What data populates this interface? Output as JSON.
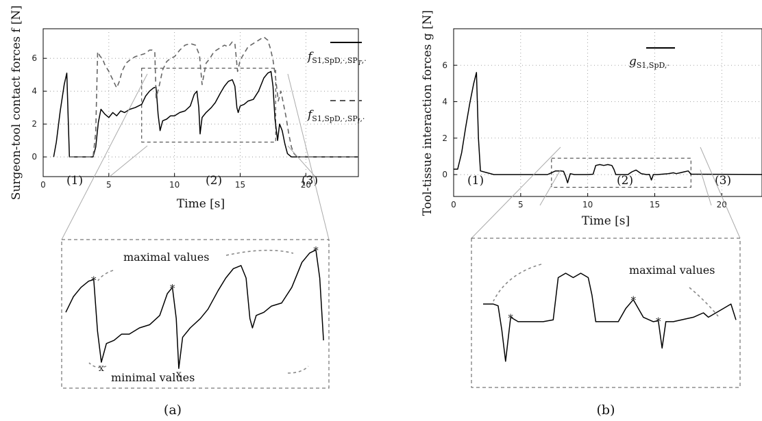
{
  "chart_data": [
    {
      "type": "line",
      "panel": "(a)",
      "ylabel": "Surgeon-tool contact forces f [N]",
      "xlabel": "Time [s]",
      "xlim": [
        0,
        24
      ],
      "ylim": [
        -1.2,
        7.8
      ],
      "x_ticks": [
        0,
        5,
        10,
        15,
        20
      ],
      "y_ticks": [
        0,
        2,
        4,
        6
      ],
      "grid": "dotted",
      "phases": [
        "(1)",
        "(2)",
        "(3)"
      ],
      "legend": {
        "placement": "right",
        "entries": [
          {
            "label_base": "f",
            "label_sub": "S1,SpD,·,SP",
            "label_subsub": "T",
            "label_tail": ",·",
            "style": "solid"
          },
          {
            "label_base": "f",
            "label_sub": "S1,SpD,·,SP",
            "label_subsub": "I",
            "label_tail": ",·",
            "style": "dashed"
          }
        ]
      },
      "series": [
        {
          "style": "solid",
          "x": [
            0.8,
            1.0,
            1.3,
            1.6,
            1.8,
            1.9,
            2.0,
            3.8,
            4.0,
            4.2,
            4.4,
            4.7,
            5.0,
            5.3,
            5.6,
            5.9,
            6.2,
            6.6,
            7.0,
            7.5,
            7.8,
            8.1,
            8.4,
            8.6,
            8.75,
            8.9,
            9.1,
            9.4,
            9.7,
            10.0,
            10.4,
            10.8,
            11.2,
            11.5,
            11.7,
            11.85,
            11.95,
            12.1,
            12.4,
            12.8,
            13.1,
            13.5,
            13.8,
            14.1,
            14.4,
            14.6,
            14.75,
            14.85,
            15.0,
            15.3,
            15.6,
            16.0,
            16.4,
            16.8,
            17.1,
            17.35,
            17.5,
            17.65,
            17.85,
            18.0,
            18.2,
            18.4,
            18.6,
            18.9,
            19.2,
            19.5,
            24.0
          ],
          "y": [
            0,
            0.9,
            2.8,
            4.4,
            5.1,
            2.5,
            0,
            0,
            0.6,
            2.1,
            2.9,
            2.6,
            2.4,
            2.7,
            2.5,
            2.8,
            2.7,
            2.9,
            3.0,
            3.2,
            3.7,
            4.0,
            4.2,
            4.25,
            2.6,
            1.6,
            2.2,
            2.3,
            2.5,
            2.5,
            2.7,
            2.8,
            3.1,
            3.8,
            4.0,
            3.0,
            1.4,
            2.4,
            2.7,
            3.0,
            3.3,
            3.9,
            4.3,
            4.6,
            4.7,
            4.3,
            3.0,
            2.7,
            3.1,
            3.2,
            3.4,
            3.5,
            4.0,
            4.8,
            5.1,
            5.2,
            4.3,
            2.3,
            1.0,
            2.0,
            1.6,
            0.8,
            0.2,
            0,
            0,
            0,
            0
          ]
        },
        {
          "style": "dashed",
          "x": [
            2.0,
            3.8,
            4.0,
            4.15,
            4.35,
            4.5,
            4.7,
            5.0,
            5.3,
            5.6,
            5.8,
            6.0,
            6.3,
            6.6,
            7.0,
            7.4,
            7.8,
            8.1,
            8.3,
            8.5,
            8.6,
            8.8,
            9.1,
            9.4,
            9.7,
            10.0,
            10.4,
            10.8,
            11.2,
            11.6,
            11.9,
            12.1,
            12.4,
            12.7,
            13.0,
            13.4,
            13.8,
            14.1,
            14.4,
            14.6,
            14.8,
            15.0,
            15.3,
            15.6,
            16.0,
            16.4,
            16.8,
            17.1,
            17.3,
            17.5,
            17.7,
            17.9,
            18.1,
            18.3,
            18.5,
            18.7,
            18.9,
            19.1,
            19.3,
            19.5,
            24.0
          ],
          "y": [
            0,
            0,
            1.5,
            6.4,
            6.1,
            6.0,
            5.6,
            5.2,
            4.7,
            4.2,
            4.6,
            5.2,
            5.7,
            5.9,
            6.1,
            6.2,
            6.3,
            6.5,
            6.5,
            6.4,
            3.6,
            4.2,
            5.3,
            5.8,
            6.0,
            6.1,
            6.5,
            6.8,
            6.9,
            6.8,
            6.2,
            4.4,
            5.7,
            6.0,
            6.4,
            6.6,
            6.8,
            6.7,
            7.0,
            6.9,
            5.2,
            5.9,
            6.3,
            6.7,
            6.9,
            7.1,
            7.3,
            7.1,
            6.6,
            5.9,
            4.8,
            3.4,
            4.0,
            3.2,
            2.4,
            1.4,
            0.6,
            0.2,
            0.05,
            0,
            0
          ]
        }
      ],
      "zoom": {
        "annotation_max": "maximal values",
        "annotation_min": "minimal values",
        "max_marker": "*",
        "min_marker": "x",
        "x_range": [
          7.5,
          17.7
        ],
        "y_range": [
          0.9,
          5.4
        ]
      }
    },
    {
      "type": "line",
      "panel": "(b)",
      "ylabel": "Tool-tissue interaction forces g [N]",
      "xlabel": "Time [s]",
      "xlim": [
        0,
        23
      ],
      "ylim": [
        -1.2,
        8.0
      ],
      "x_ticks": [
        0,
        5,
        10,
        15,
        20
      ],
      "y_ticks": [
        0,
        2,
        4,
        6
      ],
      "grid": "dotted",
      "phases": [
        "(1)",
        "(2)",
        "(3)"
      ],
      "legend": {
        "placement": "top-center",
        "entries": [
          {
            "label_base": "g",
            "label_sub": "S1,SpD,·",
            "style": "solid"
          }
        ]
      },
      "series": [
        {
          "style": "solid",
          "x": [
            0,
            0.3,
            0.6,
            0.9,
            1.2,
            1.5,
            1.7,
            1.85,
            2.0,
            2.5,
            3,
            5,
            7,
            7.6,
            8.0,
            8.2,
            8.35,
            8.5,
            8.7,
            9,
            10,
            10.4,
            10.6,
            10.9,
            11.2,
            11.5,
            11.8,
            11.95,
            12.1,
            12.4,
            13,
            13.3,
            13.6,
            14,
            14.4,
            14.6,
            14.75,
            14.9,
            15.2,
            16,
            16.4,
            16.6,
            16.9,
            17.2,
            17.5,
            17.7,
            24
          ],
          "y": [
            0.3,
            0.3,
            1.2,
            2.6,
            3.9,
            5.0,
            5.6,
            2.0,
            0.2,
            0.1,
            0,
            0,
            0,
            0.2,
            0.2,
            0.18,
            -0.1,
            -0.45,
            0.05,
            0,
            0,
            0.02,
            0.5,
            0.55,
            0.5,
            0.55,
            0.5,
            0.3,
            0,
            0,
            0,
            0.15,
            0.25,
            0.05,
            0,
            0.01,
            -0.3,
            0,
            0,
            0.05,
            0.1,
            0.05,
            0.1,
            0.15,
            0.2,
            0.02,
            0
          ]
        }
      ],
      "zoom": {
        "annotation_max": "maximal values",
        "max_marker": "*",
        "x_range": [
          7.3,
          17.7
        ],
        "y_range": [
          -0.7,
          0.9
        ]
      }
    }
  ],
  "captions": [
    "(a)",
    "(b)"
  ]
}
